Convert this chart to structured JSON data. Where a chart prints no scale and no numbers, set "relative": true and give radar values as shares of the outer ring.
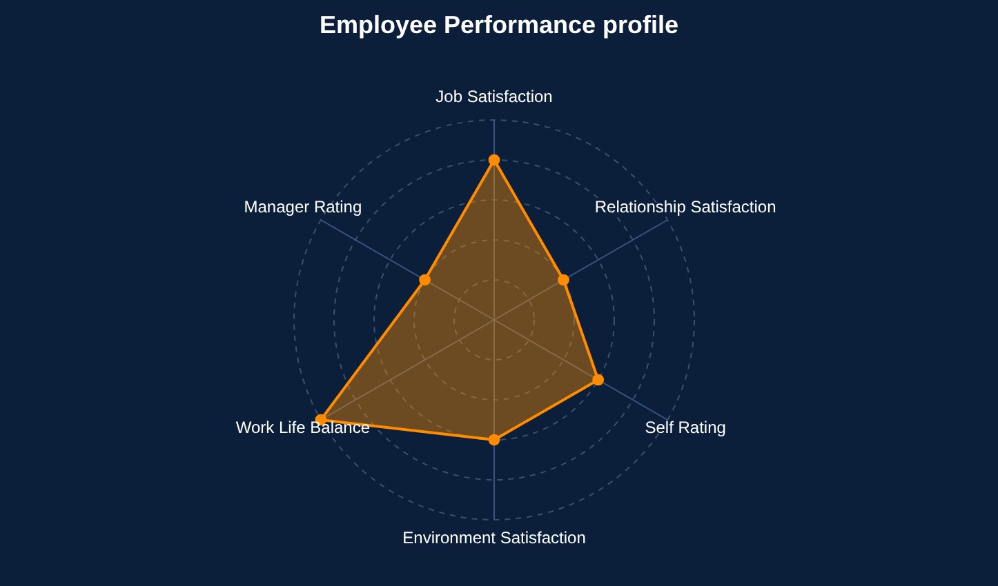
{
  "chart_data": {
    "type": "radar",
    "title": "Employee Performance profile",
    "categories": [
      "Job Satisfaction",
      "Relationship Satisfaction",
      "Self Rating",
      "Environment Satisfaction",
      "Work Life Balance",
      "Manager Rating"
    ],
    "relative": true,
    "series": [
      {
        "color": "#ff8c00",
        "values": [
          0.8,
          0.4,
          0.6,
          0.6,
          1.0,
          0.4
        ]
      }
    ],
    "grid": true,
    "marker": "circle",
    "line_style": "solid"
  }
}
